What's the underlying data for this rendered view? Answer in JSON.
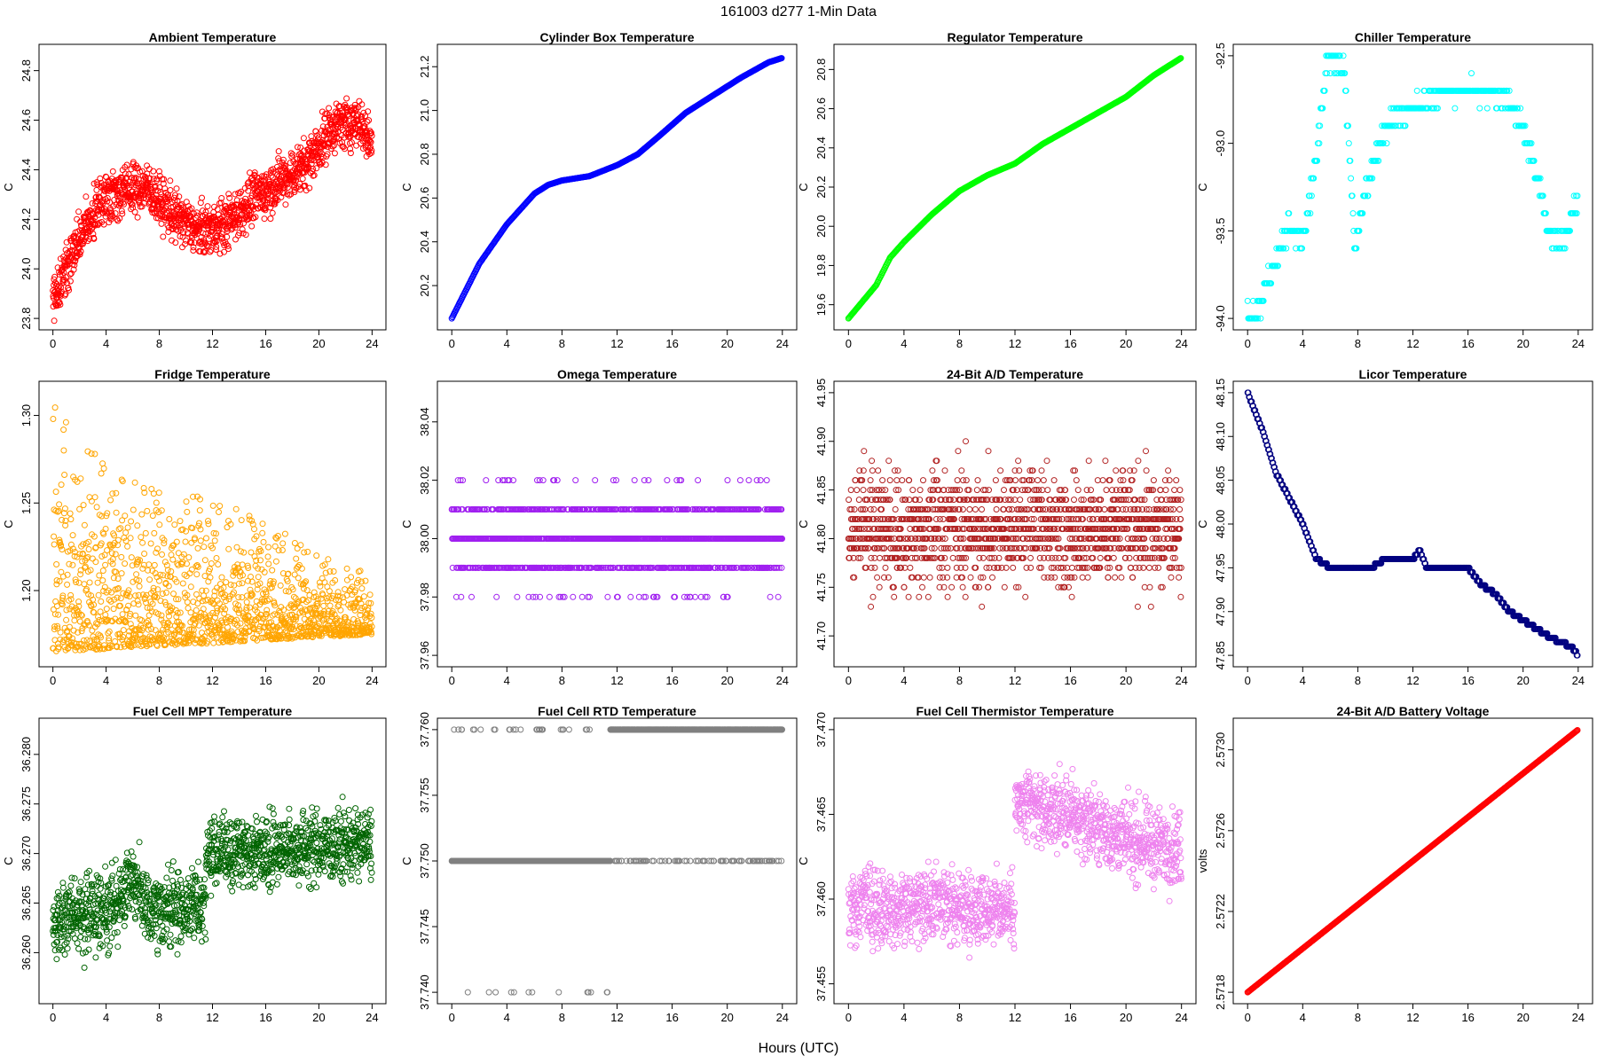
{
  "figure": {
    "title": "161003    d277    1-Min Data",
    "xlabel": "Hours (UTC)"
  },
  "chart_data": [
    {
      "type": "scatter",
      "title": "Ambient Temperature",
      "ylabel": "C",
      "color": "#ff0000",
      "pattern": "ambient",
      "xlim": [
        0,
        24
      ],
      "xticks": [
        0,
        4,
        8,
        12,
        16,
        20,
        24
      ],
      "xtick_labels": [
        "0",
        "4",
        "8",
        "12",
        "16",
        "20",
        "24"
      ],
      "ylim": [
        23.8,
        24.86
      ],
      "yticks": [
        23.8,
        24.0,
        24.2,
        24.4,
        24.6,
        24.8
      ],
      "ytick_labels": [
        "23.8",
        "24.0",
        "24.2",
        "24.4",
        "24.6",
        "24.8"
      ]
    },
    {
      "type": "scatter",
      "title": "Cylinder Box Temperature",
      "ylabel": "C",
      "color": "#0000ff",
      "pattern": "cylinder",
      "xlim": [
        0,
        24
      ],
      "xticks": [
        0,
        4,
        8,
        12,
        16,
        20,
        24
      ],
      "xtick_labels": [
        "0",
        "4",
        "8",
        "12",
        "16",
        "20",
        "24"
      ],
      "ylim": [
        20.05,
        21.25
      ],
      "yticks": [
        20.2,
        20.4,
        20.6,
        20.8,
        21.0,
        21.2
      ],
      "ytick_labels": [
        "20.2",
        "20.4",
        "20.6",
        "20.8",
        "21.0",
        "21.2"
      ]
    },
    {
      "type": "scatter",
      "title": "Regulator Temperature",
      "ylabel": "C",
      "color": "#00ff00",
      "pattern": "regulator",
      "xlim": [
        0,
        24
      ],
      "xticks": [
        0,
        4,
        8,
        12,
        16,
        20,
        24
      ],
      "xtick_labels": [
        "0",
        "4",
        "8",
        "12",
        "16",
        "20",
        "24"
      ],
      "ylim": [
        19.53,
        20.87
      ],
      "yticks": [
        19.6,
        19.8,
        20.0,
        20.2,
        20.4,
        20.6,
        20.8
      ],
      "ytick_labels": [
        "19.6",
        "19.8",
        "20.0",
        "20.2",
        "20.4",
        "20.6",
        "20.8"
      ]
    },
    {
      "type": "scatter",
      "title": "Chiller Temperature",
      "ylabel": "C",
      "color": "#00ffff",
      "pattern": "chiller",
      "xlim": [
        0,
        24
      ],
      "xticks": [
        0,
        4,
        8,
        12,
        16,
        20,
        24
      ],
      "xtick_labels": [
        "0",
        "4",
        "8",
        "12",
        "16",
        "20",
        "24"
      ],
      "ylim": [
        -94.0,
        -92.5
      ],
      "yticks": [
        -94.0,
        -93.5,
        -93.0,
        -92.5
      ],
      "ytick_labels": [
        "-94.0",
        "-93.5",
        "-93.0",
        "-92.5"
      ]
    },
    {
      "type": "scatter",
      "title": "Fridge Temperature",
      "ylabel": "C",
      "color": "#ffa500",
      "pattern": "fridge",
      "xlim": [
        0,
        24
      ],
      "xticks": [
        0,
        4,
        8,
        12,
        16,
        20,
        24
      ],
      "xtick_labels": [
        "0",
        "4",
        "8",
        "12",
        "16",
        "20",
        "24"
      ],
      "ylim": [
        1.163,
        1.313
      ],
      "yticks": [
        1.2,
        1.25,
        1.3
      ],
      "ytick_labels": [
        "1.20",
        "1.25",
        "1.30"
      ]
    },
    {
      "type": "scatter",
      "title": "Omega Temperature",
      "ylabel": "C",
      "color": "#a020f0",
      "pattern": "omega",
      "xlim": [
        0,
        24
      ],
      "xticks": [
        0,
        4,
        8,
        12,
        16,
        20,
        24
      ],
      "xtick_labels": [
        "0",
        "4",
        "8",
        "12",
        "16",
        "20",
        "24"
      ],
      "ylim": [
        37.96,
        38.05
      ],
      "yticks": [
        37.96,
        37.98,
        38.0,
        38.02,
        38.04
      ],
      "ytick_labels": [
        "37.96",
        "37.98",
        "38.00",
        "38.02",
        "38.04"
      ]
    },
    {
      "type": "scatter",
      "title": "24-Bit A/D Temperature",
      "ylabel": "C",
      "color": "#b22222",
      "pattern": "adtemp",
      "xlim": [
        0,
        24
      ],
      "xticks": [
        0,
        4,
        8,
        12,
        16,
        20,
        24
      ],
      "xtick_labels": [
        "0",
        "4",
        "8",
        "12",
        "16",
        "20",
        "24"
      ],
      "ylim": [
        41.68,
        41.95
      ],
      "yticks": [
        41.7,
        41.75,
        41.8,
        41.85,
        41.9,
        41.95
      ],
      "ytick_labels": [
        "41.70",
        "41.75",
        "41.80",
        "41.85",
        "41.90",
        "41.95"
      ]
    },
    {
      "type": "scatter",
      "title": "Licor Temperature",
      "ylabel": "C",
      "color": "#000080",
      "pattern": "licor",
      "xlim": [
        0,
        24
      ],
      "xticks": [
        0,
        4,
        8,
        12,
        16,
        20,
        24
      ],
      "xtick_labels": [
        "0",
        "4",
        "8",
        "12",
        "16",
        "20",
        "24"
      ],
      "ylim": [
        47.85,
        48.15
      ],
      "yticks": [
        47.85,
        47.9,
        47.95,
        48.0,
        48.05,
        48.1,
        48.15
      ],
      "ytick_labels": [
        "47.85",
        "47.90",
        "47.95",
        "48.00",
        "48.05",
        "48.10",
        "48.15"
      ]
    },
    {
      "type": "scatter",
      "title": "Fuel Cell MPT Temperature",
      "ylabel": "C",
      "color": "#006400",
      "pattern": "mpt",
      "xlim": [
        0,
        24
      ],
      "xticks": [
        0,
        4,
        8,
        12,
        16,
        20,
        24
      ],
      "xtick_labels": [
        "0",
        "4",
        "8",
        "12",
        "16",
        "20",
        "24"
      ],
      "ylim": [
        36.256,
        36.2825
      ],
      "yticks": [
        36.26,
        36.265,
        36.27,
        36.275,
        36.28
      ],
      "ytick_labels": [
        "36.260",
        "36.265",
        "36.270",
        "36.275",
        "36.280"
      ]
    },
    {
      "type": "scatter",
      "title": "Fuel Cell RTD Temperature",
      "ylabel": "C",
      "color": "#808080",
      "pattern": "rtd",
      "xlim": [
        0,
        24
      ],
      "xticks": [
        0,
        4,
        8,
        12,
        16,
        20,
        24
      ],
      "xtick_labels": [
        "0",
        "4",
        "8",
        "12",
        "16",
        "20",
        "24"
      ],
      "ylim": [
        37.74,
        37.76
      ],
      "yticks": [
        37.74,
        37.745,
        37.75,
        37.755,
        37.76
      ],
      "ytick_labels": [
        "37.740",
        "37.745",
        "37.750",
        "37.755",
        "37.760"
      ]
    },
    {
      "type": "scatter",
      "title": "Fuel Cell Thermistor Temperature",
      "ylabel": "C",
      "color": "#ee82ee",
      "pattern": "thermistor",
      "xlim": [
        0,
        24
      ],
      "xticks": [
        0,
        4,
        8,
        12,
        16,
        20,
        24
      ],
      "xtick_labels": [
        "0",
        "4",
        "8",
        "12",
        "16",
        "20",
        "24"
      ],
      "ylim": [
        37.4545,
        37.47
      ],
      "yticks": [
        37.455,
        37.46,
        37.465,
        37.47
      ],
      "ytick_labels": [
        "37.455",
        "37.460",
        "37.465",
        "37.470"
      ]
    },
    {
      "type": "scatter",
      "title": "24-Bit A/D Battery Voltage",
      "ylabel": "volts",
      "color": "#ff0000",
      "pattern": "battery",
      "xlim": [
        0,
        24
      ],
      "xticks": [
        0,
        4,
        8,
        12,
        16,
        20,
        24
      ],
      "xtick_labels": [
        "0",
        "4",
        "8",
        "12",
        "16",
        "20",
        "24"
      ],
      "ylim": [
        2.5718,
        2.5731
      ],
      "yticks": [
        2.5718,
        2.5722,
        2.5726,
        2.573
      ],
      "ytick_labels": [
        "2.5718",
        "2.5722",
        "2.5726",
        "2.5730"
      ]
    }
  ]
}
